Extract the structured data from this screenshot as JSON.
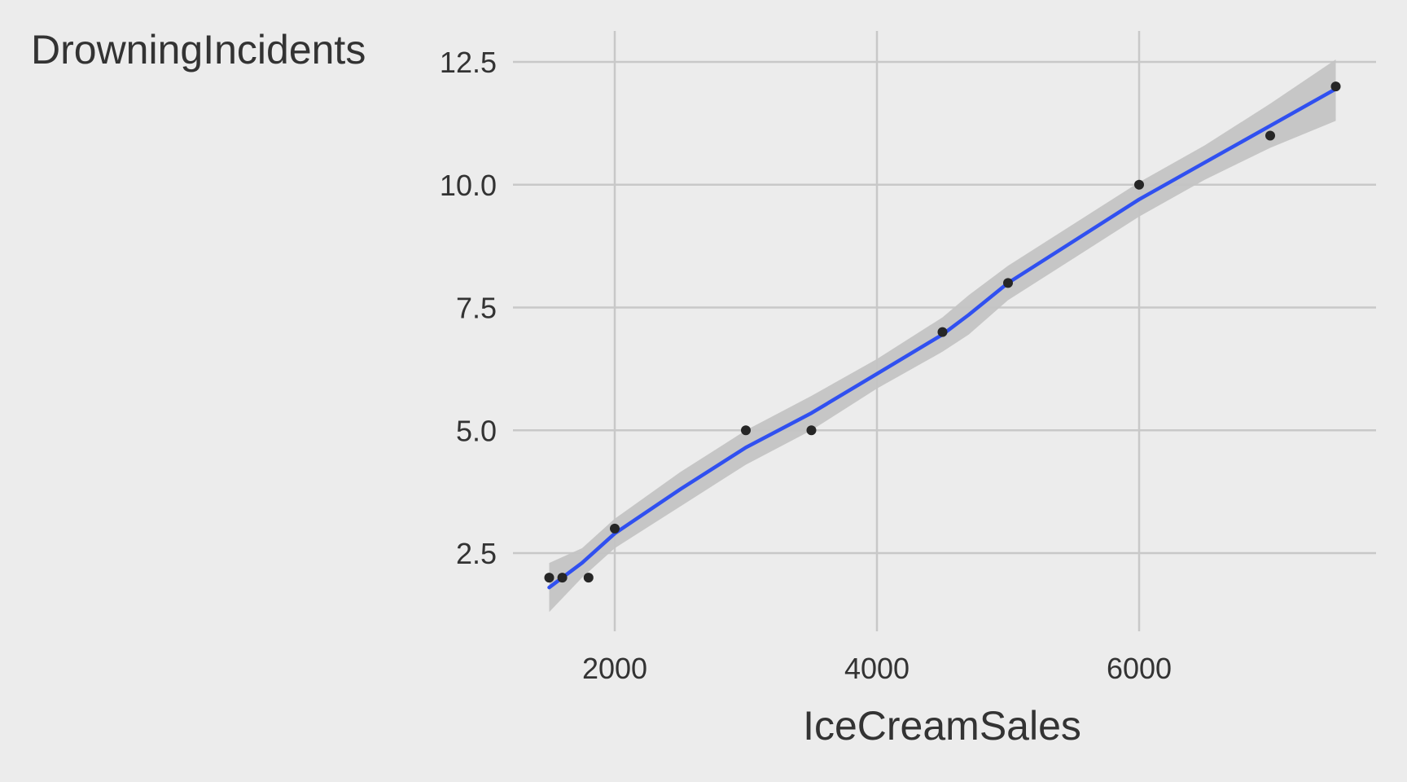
{
  "chart_data": {
    "type": "scatter",
    "title": "",
    "xlabel": "IceCreamSales",
    "ylabel": "DrowningIncidents",
    "xlim": [
      1200,
      7800
    ],
    "ylim": [
      1.0,
      13.1
    ],
    "x_ticks": [
      2000,
      4000,
      6000
    ],
    "x_tick_labels": [
      "2000",
      "4000",
      "6000"
    ],
    "y_ticks": [
      2.5,
      5.0,
      7.5,
      10.0,
      12.5
    ],
    "y_tick_labels": [
      "2.5",
      "5.0",
      "7.5",
      "10.0",
      "12.5"
    ],
    "grid": true,
    "points": {
      "x": [
        1500,
        1600,
        1800,
        2000,
        3000,
        3500,
        4500,
        5000,
        6000,
        7000,
        7500
      ],
      "y": [
        2,
        2,
        2,
        3,
        5,
        5,
        7,
        8,
        10,
        11,
        12
      ]
    },
    "smooth": {
      "x": [
        1500,
        1750,
        2000,
        2500,
        3000,
        3500,
        4000,
        4500,
        4700,
        5000,
        5500,
        6000,
        6500,
        7000,
        7500
      ],
      "y": [
        1.8,
        2.3,
        2.9,
        3.8,
        4.65,
        5.35,
        6.15,
        6.95,
        7.35,
        8.0,
        8.85,
        9.7,
        10.45,
        11.2,
        11.95
      ],
      "lower": [
        1.3,
        2.0,
        2.6,
        3.45,
        4.3,
        5.0,
        5.85,
        6.6,
        6.95,
        7.65,
        8.5,
        9.35,
        10.1,
        10.75,
        11.3
      ],
      "upper": [
        2.3,
        2.6,
        3.2,
        4.15,
        5.0,
        5.7,
        6.45,
        7.3,
        7.75,
        8.35,
        9.2,
        10.05,
        10.8,
        11.65,
        12.55
      ]
    },
    "colors": {
      "background": "#ececec",
      "grid": "#c8c8c8",
      "line": "#3050f0",
      "ribbon": "#c4c4c4",
      "point": "#262626",
      "text": "#333333"
    }
  }
}
